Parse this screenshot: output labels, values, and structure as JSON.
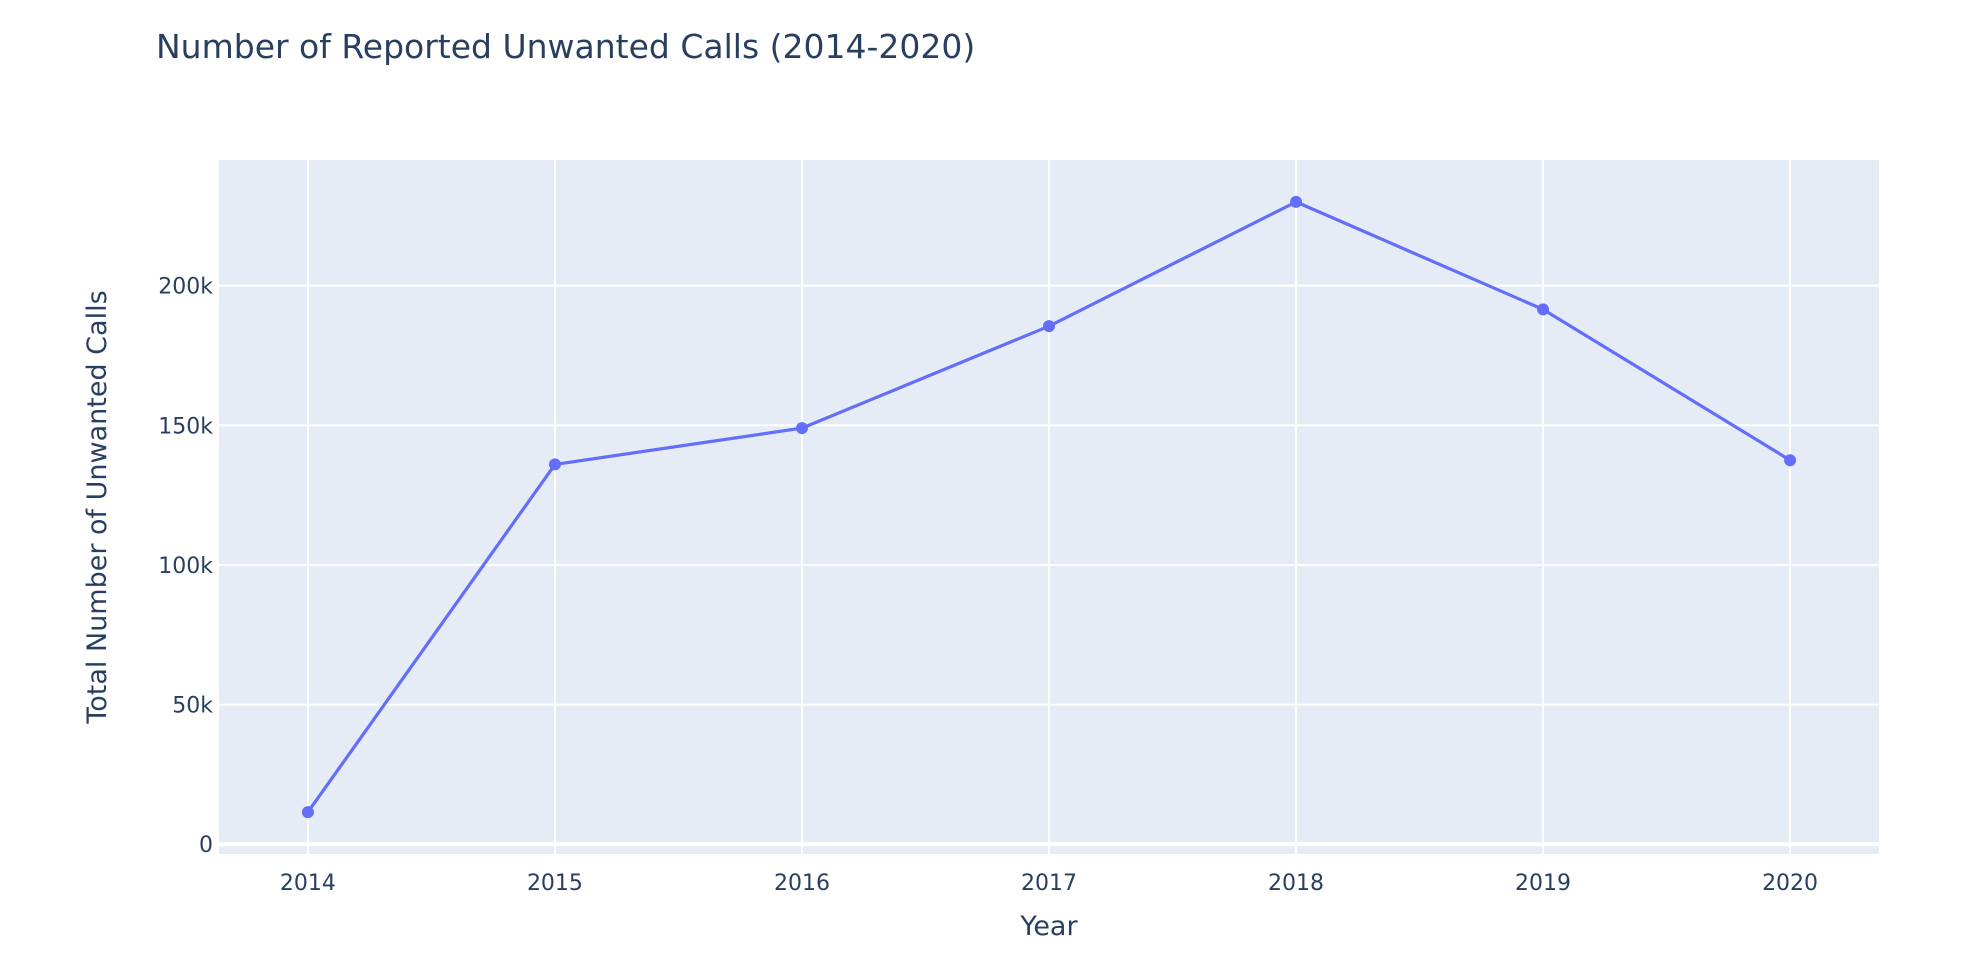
{
  "chart_data": {
    "type": "line",
    "title": "Number of Reported Unwanted Calls (2014-2020)",
    "xlabel": "Year",
    "ylabel": "Total Number of Unwanted Calls",
    "x": [
      "2014",
      "2015",
      "2016",
      "2017",
      "2018",
      "2019",
      "2020"
    ],
    "series": [
      {
        "values": [
          11500,
          136000,
          149000,
          185500,
          230000,
          191500,
          137500
        ]
      }
    ],
    "xlim": [
      2013.64,
      2020.36
    ],
    "ylim": [
      -3500,
      245000
    ],
    "y_ticks": [
      0,
      50000,
      100000,
      150000,
      200000
    ],
    "y_tick_labels": [
      "0",
      "50k",
      "100k",
      "150k",
      "200k"
    ],
    "grid": true,
    "legend": "none",
    "colors": {
      "line": "#636efa",
      "plot_background": "#e5ecf6",
      "grid": "#ffffff",
      "text": "#2a3f5f"
    }
  }
}
